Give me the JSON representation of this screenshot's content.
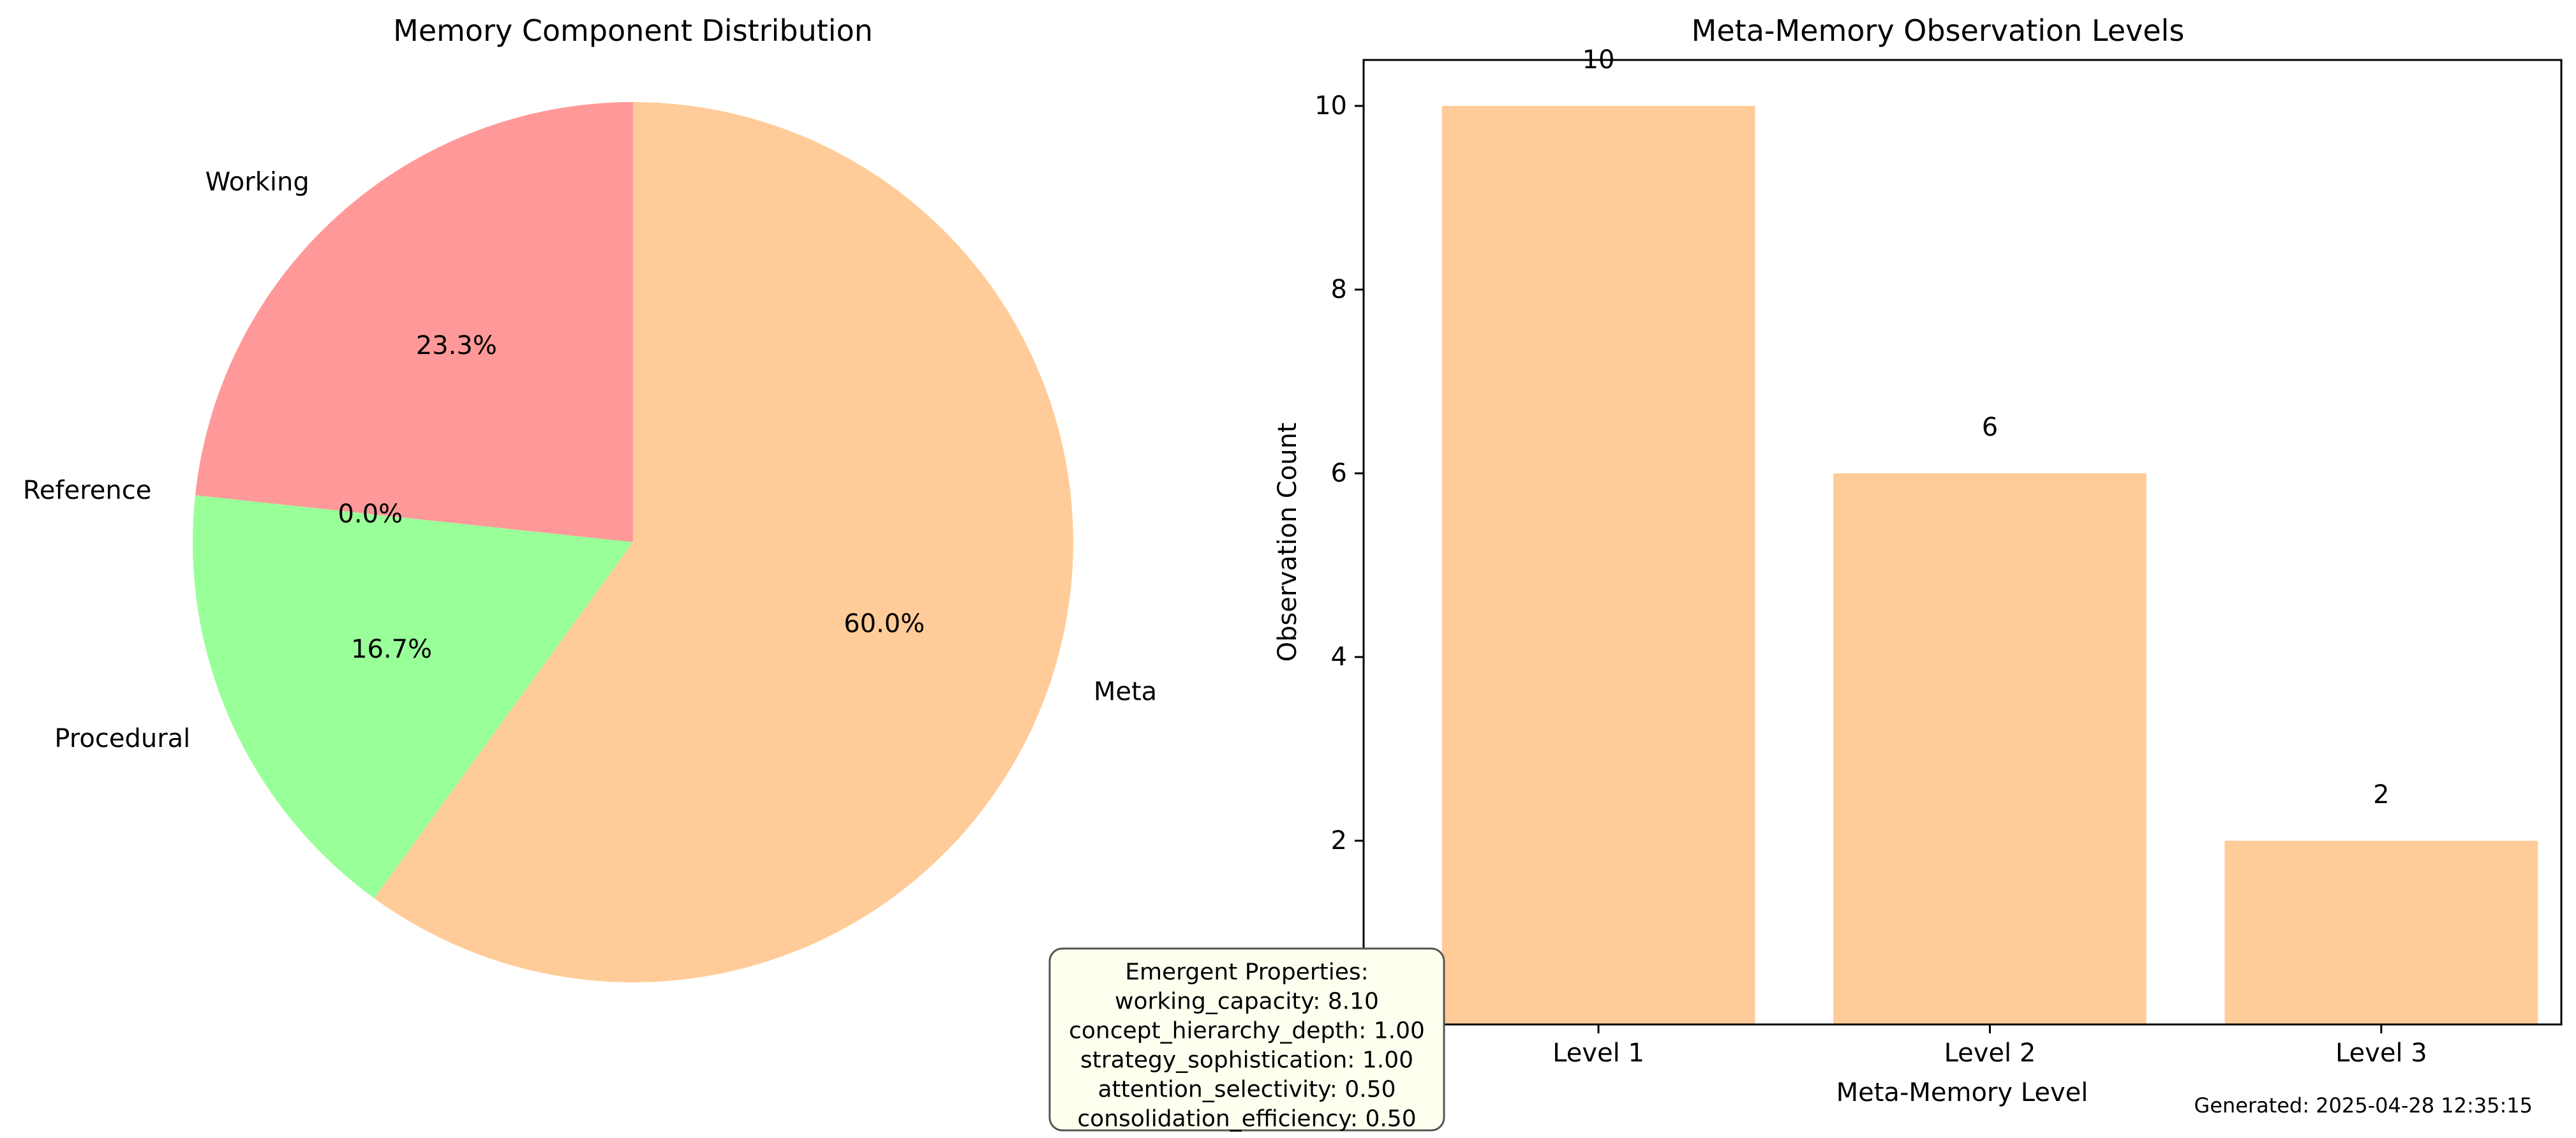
{
  "chart_data": [
    {
      "type": "pie",
      "title": "Memory Component Distribution",
      "slices": [
        {
          "label": "Working",
          "value": 23.3,
          "pct_label": "23.3%",
          "color": "#ff9999"
        },
        {
          "label": "Reference",
          "value": 0.0,
          "pct_label": "0.0%",
          "color": "#66b3ff"
        },
        {
          "label": "Procedural",
          "value": 16.7,
          "pct_label": "16.7%",
          "color": "#99ff99"
        },
        {
          "label": "Meta",
          "value": 60.0,
          "pct_label": "60.0%",
          "color": "#ffcc99"
        }
      ],
      "start_angle_deg": 90,
      "direction": "counterclockwise"
    },
    {
      "type": "bar",
      "title": "Meta-Memory Observation Levels",
      "xlabel": "Meta-Memory Level",
      "ylabel": "Observation Count",
      "categories": [
        "Level 1",
        "Level 2",
        "Level 3"
      ],
      "values": [
        10,
        6,
        2
      ],
      "data_labels": [
        "10",
        "6",
        "2"
      ],
      "ylim": [
        0,
        10.5
      ],
      "yticks": [
        2,
        4,
        6,
        8,
        10
      ],
      "grid": false,
      "bar_color": "#ffcc99"
    }
  ],
  "annotation": {
    "lines": [
      "Emergent Properties:",
      "working_capacity: 8.10",
      "concept_hierarchy_depth: 1.00",
      "strategy_sophistication: 1.00",
      "attention_selectivity: 0.50",
      "consolidation_efficiency: 0.50"
    ],
    "box_color": "#fffff0",
    "obscured_tick_label": "0"
  },
  "footer": {
    "generated": "Generated: 2025-04-28 12:35:15"
  }
}
